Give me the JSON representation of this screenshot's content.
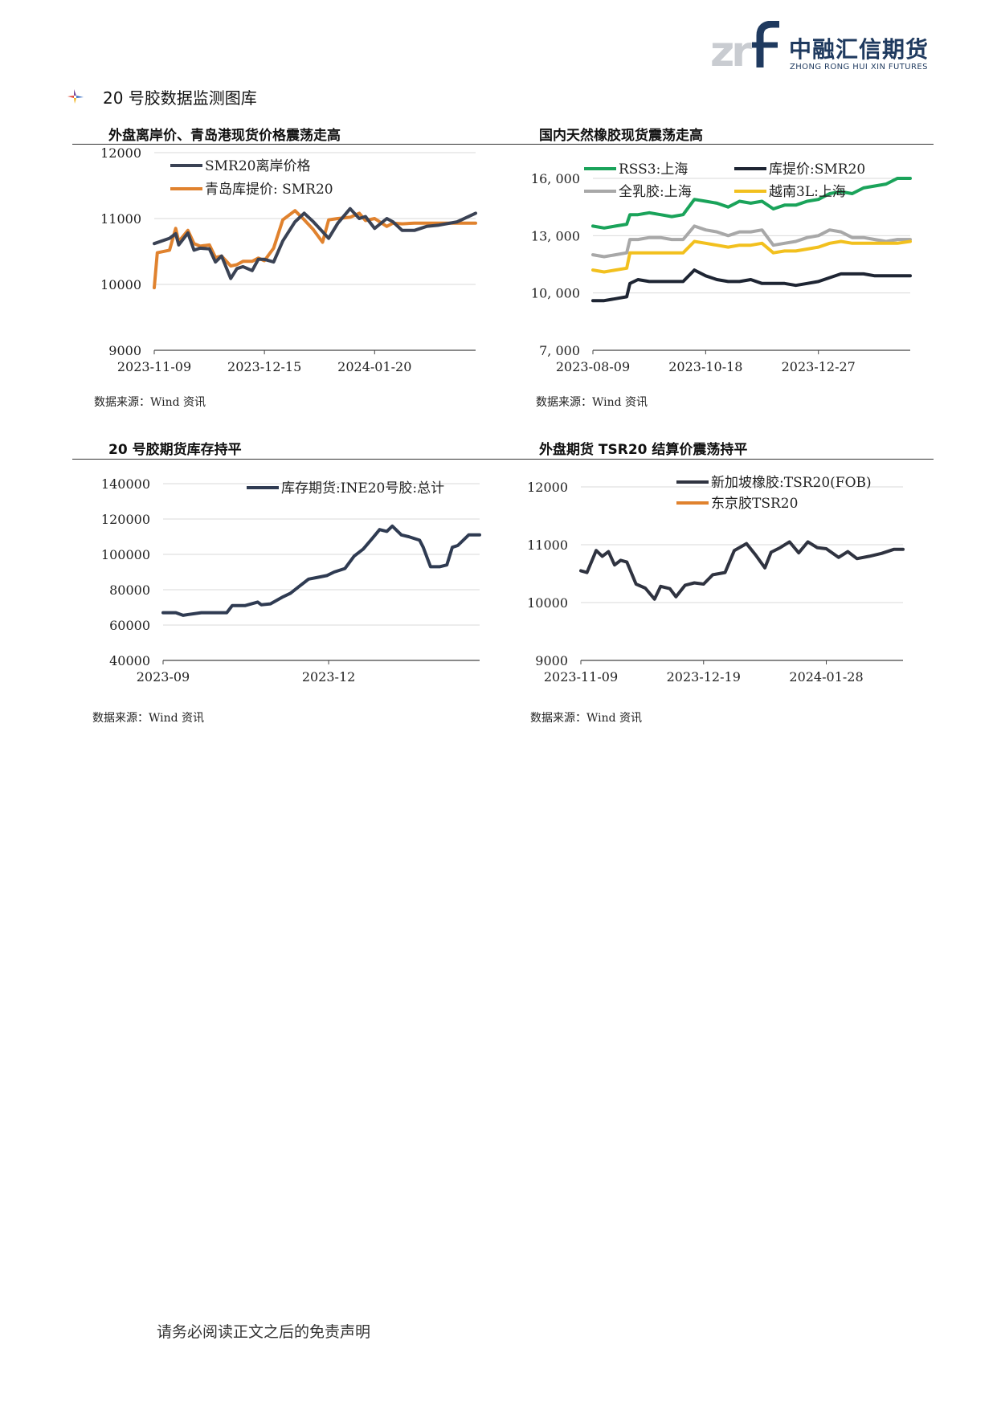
{
  "header": {
    "logo_mark": "zrf",
    "logo_cn": "中融汇信期货",
    "logo_en": "ZHONG RONG HUI XIN FUTURES"
  },
  "section_title": "20 号胶数据监测图库",
  "footer": "请务必阅读正文之后的免责声明",
  "panels": [
    {
      "title": "外盘离岸价、青岛港现货价格震荡走高",
      "source": "数据来源：Wind 资讯"
    },
    {
      "title": "国内天然橡胶现货震荡走高",
      "source": "数据来源：Wind 资讯"
    },
    {
      "title": "20 号胶期货库存持平",
      "source": "数据来源：Wind 资讯"
    },
    {
      "title": "外盘期货 TSR20 结算价震荡持平",
      "source": "数据来源：Wind 资讯"
    }
  ],
  "chart_data": [
    {
      "type": "line",
      "title": "外盘离岸价、青岛港现货价格震荡走高",
      "ylim": [
        9000,
        12000
      ],
      "yticks": [
        9000,
        10000,
        11000,
        12000
      ],
      "xlim": [
        "2023-11-09",
        "2024-02-22"
      ],
      "xticks": [
        "2023-11-09",
        "2023-12-15",
        "2024-01-20"
      ],
      "legend": "top-left",
      "series": [
        {
          "name": "SMR20离岸价格",
          "color": "#3a4254",
          "x": [
            "2023-11-09",
            "2023-11-14",
            "2023-11-16",
            "2023-11-17",
            "2023-11-20",
            "2023-11-22",
            "2023-11-24",
            "2023-11-27",
            "2023-11-29",
            "2023-12-01",
            "2023-12-04",
            "2023-12-06",
            "2023-12-08",
            "2023-12-11",
            "2023-12-13",
            "2023-12-15",
            "2023-12-18",
            "2023-12-21",
            "2023-12-25",
            "2023-12-28",
            "2023-12-31",
            "2024-01-03",
            "2024-01-05",
            "2024-01-08",
            "2024-01-12",
            "2024-01-15",
            "2024-01-17",
            "2024-01-20",
            "2024-01-24",
            "2024-01-26",
            "2024-01-29",
            "2024-02-02",
            "2024-02-06",
            "2024-02-10",
            "2024-02-16",
            "2024-02-22"
          ],
          "values": [
            10620,
            10700,
            10770,
            10600,
            10780,
            10520,
            10550,
            10540,
            10340,
            10430,
            10090,
            10240,
            10270,
            10210,
            10380,
            10380,
            10340,
            10660,
            10950,
            11080,
            10950,
            10800,
            10700,
            10930,
            11150,
            11000,
            11030,
            10850,
            11000,
            10950,
            10820,
            10820,
            10880,
            10900,
            10950,
            11080
          ]
        },
        {
          "name": "青岛库提价: SMR20",
          "color": "#e0822e",
          "x": [
            "2023-11-09",
            "2023-11-10",
            "2023-11-14",
            "2023-11-16",
            "2023-11-17",
            "2023-11-20",
            "2023-11-22",
            "2023-11-24",
            "2023-11-27",
            "2023-11-29",
            "2023-12-01",
            "2023-12-04",
            "2023-12-06",
            "2023-12-08",
            "2023-12-11",
            "2023-12-13",
            "2023-12-15",
            "2023-12-18",
            "2023-12-21",
            "2023-12-25",
            "2023-12-28",
            "2023-12-31",
            "2024-01-03",
            "2024-01-05",
            "2024-01-08",
            "2024-01-12",
            "2024-01-15",
            "2024-01-17",
            "2024-01-20",
            "2024-01-24",
            "2024-01-26",
            "2024-01-29",
            "2024-02-02",
            "2024-02-06",
            "2024-02-10",
            "2024-02-16",
            "2024-02-22"
          ],
          "values": [
            9950,
            10480,
            10520,
            10850,
            10650,
            10820,
            10620,
            10580,
            10600,
            10410,
            10430,
            10280,
            10300,
            10350,
            10350,
            10400,
            10360,
            10550,
            10980,
            11120,
            10980,
            10830,
            10640,
            10980,
            11000,
            11020,
            11080,
            10970,
            11000,
            10880,
            10930,
            10920,
            10930,
            10930,
            10930,
            10930,
            10930
          ]
        }
      ]
    },
    {
      "type": "line",
      "title": "国内天然橡胶现货震荡走高",
      "ylim": [
        7000,
        16000
      ],
      "yticks": [
        7000,
        10000,
        13000,
        16000
      ],
      "ytick_labels": [
        "7, 000",
        "10, 000",
        "13, 000",
        "16, 000"
      ],
      "xlim": [
        "2023-08-09",
        "2024-02-22"
      ],
      "xticks": [
        "2023-08-09",
        "2023-10-18",
        "2023-12-27"
      ],
      "legend": "top",
      "series": [
        {
          "name": "RSS3:上海",
          "color": "#1aa35a",
          "x": [
            "2023-08-09",
            "2023-08-16",
            "2023-08-23",
            "2023-08-30",
            "2023-09-01",
            "2023-09-06",
            "2023-09-13",
            "2023-09-20",
            "2023-09-27",
            "2023-10-04",
            "2023-10-11",
            "2023-10-18",
            "2023-10-25",
            "2023-11-01",
            "2023-11-08",
            "2023-11-15",
            "2023-11-22",
            "2023-11-29",
            "2023-12-06",
            "2023-12-13",
            "2023-12-20",
            "2023-12-27",
            "2024-01-03",
            "2024-01-10",
            "2024-01-17",
            "2024-01-24",
            "2024-01-31",
            "2024-02-07",
            "2024-02-14",
            "2024-02-22"
          ],
          "values": [
            13500,
            13400,
            13500,
            13600,
            14100,
            14100,
            14200,
            14100,
            14000,
            14100,
            14900,
            14800,
            14700,
            14500,
            14800,
            14700,
            14800,
            14400,
            14600,
            14600,
            14800,
            14900,
            15200,
            15300,
            15200,
            15500,
            15600,
            15700,
            16000,
            16000
          ]
        },
        {
          "name": "库提价:SMR20",
          "color": "#1e2533",
          "x": [
            "2023-08-09",
            "2023-08-16",
            "2023-08-23",
            "2023-08-30",
            "2023-09-01",
            "2023-09-06",
            "2023-09-13",
            "2023-09-20",
            "2023-09-27",
            "2023-10-04",
            "2023-10-11",
            "2023-10-18",
            "2023-10-25",
            "2023-11-01",
            "2023-11-08",
            "2023-11-15",
            "2023-11-22",
            "2023-11-29",
            "2023-12-06",
            "2023-12-13",
            "2023-12-20",
            "2023-12-27",
            "2024-01-03",
            "2024-01-10",
            "2024-01-17",
            "2024-01-24",
            "2024-01-31",
            "2024-02-07",
            "2024-02-14",
            "2024-02-22"
          ],
          "values": [
            9600,
            9600,
            9700,
            9800,
            10500,
            10700,
            10600,
            10600,
            10600,
            10600,
            11200,
            10900,
            10700,
            10600,
            10600,
            10700,
            10500,
            10500,
            10500,
            10400,
            10500,
            10600,
            10800,
            11000,
            11000,
            11000,
            10900,
            10900,
            10900,
            10900
          ]
        },
        {
          "name": "全乳胶:上海",
          "color": "#a8a8a8",
          "x": [
            "2023-08-09",
            "2023-08-16",
            "2023-08-23",
            "2023-08-30",
            "2023-09-01",
            "2023-09-06",
            "2023-09-13",
            "2023-09-20",
            "2023-09-27",
            "2023-10-04",
            "2023-10-11",
            "2023-10-18",
            "2023-10-25",
            "2023-11-01",
            "2023-11-08",
            "2023-11-15",
            "2023-11-22",
            "2023-11-29",
            "2023-12-06",
            "2023-12-13",
            "2023-12-20",
            "2023-12-27",
            "2024-01-03",
            "2024-01-10",
            "2024-01-17",
            "2024-01-24",
            "2024-01-31",
            "2024-02-07",
            "2024-02-14",
            "2024-02-22"
          ],
          "values": [
            12000,
            11900,
            12000,
            12100,
            12800,
            12800,
            12900,
            12900,
            12800,
            12800,
            13500,
            13300,
            13200,
            13000,
            13200,
            13200,
            13300,
            12500,
            12600,
            12700,
            12900,
            13000,
            13300,
            13200,
            12900,
            12900,
            12800,
            12700,
            12800,
            12800
          ]
        },
        {
          "name": "越南3L:上海",
          "color": "#f2c01e",
          "x": [
            "2023-08-09",
            "2023-08-16",
            "2023-08-23",
            "2023-08-30",
            "2023-09-01",
            "2023-09-06",
            "2023-09-13",
            "2023-09-20",
            "2023-09-27",
            "2023-10-04",
            "2023-10-11",
            "2023-10-18",
            "2023-10-25",
            "2023-11-01",
            "2023-11-08",
            "2023-11-15",
            "2023-11-22",
            "2023-11-29",
            "2023-12-06",
            "2023-12-13",
            "2023-12-20",
            "2023-12-27",
            "2024-01-03",
            "2024-01-10",
            "2024-01-17",
            "2024-01-24",
            "2024-01-31",
            "2024-02-07",
            "2024-02-14",
            "2024-02-22"
          ],
          "values": [
            11200,
            11100,
            11200,
            11300,
            12100,
            12100,
            12100,
            12100,
            12100,
            12100,
            12700,
            12600,
            12500,
            12400,
            12500,
            12500,
            12600,
            12100,
            12200,
            12200,
            12300,
            12400,
            12600,
            12700,
            12600,
            12600,
            12600,
            12600,
            12600,
            12700
          ]
        }
      ]
    },
    {
      "type": "line",
      "title": "20 号胶期货库存持平",
      "ylim": [
        40000,
        140000
      ],
      "yticks": [
        40000,
        60000,
        80000,
        100000,
        120000,
        140000
      ],
      "xlim": [
        "2023-09-01",
        "2024-02-22"
      ],
      "xticks": [
        "2023-09",
        "2023-12"
      ],
      "xtick_dates": [
        "2023-09-01",
        "2023-12-01"
      ],
      "legend": "top-right",
      "series": [
        {
          "name": "库存期货:INE20号胶:总计",
          "color": "#2f3b52",
          "x": [
            "2023-09-01",
            "2023-09-08",
            "2023-09-12",
            "2023-09-15",
            "2023-09-22",
            "2023-09-29",
            "2023-10-06",
            "2023-10-09",
            "2023-10-16",
            "2023-10-23",
            "2023-10-25",
            "2023-10-30",
            "2023-11-06",
            "2023-11-10",
            "2023-11-15",
            "2023-11-20",
            "2023-11-25",
            "2023-11-30",
            "2023-12-04",
            "2023-12-10",
            "2023-12-15",
            "2023-12-20",
            "2023-12-25",
            "2023-12-29",
            "2024-01-02",
            "2024-01-05",
            "2024-01-10",
            "2024-01-14",
            "2024-01-20",
            "2024-01-22",
            "2024-01-26",
            "2024-01-31",
            "2024-02-04",
            "2024-02-07",
            "2024-02-10",
            "2024-02-16",
            "2024-02-22"
          ],
          "values": [
            67000,
            67000,
            65500,
            66000,
            67000,
            67000,
            67000,
            71000,
            71000,
            73000,
            71500,
            72000,
            76000,
            78000,
            82000,
            86000,
            87000,
            88000,
            90000,
            92000,
            99000,
            103000,
            109000,
            114000,
            113000,
            116000,
            111000,
            110000,
            108000,
            104000,
            93000,
            93000,
            94000,
            104000,
            105000,
            111000,
            111000
          ]
        }
      ]
    },
    {
      "type": "line",
      "title": "外盘期货 TSR20 结算价震荡持平",
      "ylim": [
        9000,
        12000
      ],
      "yticks": [
        9000,
        10000,
        11000,
        12000
      ],
      "xlim": [
        "2023-11-09",
        "2024-02-22"
      ],
      "xticks": [
        "2023-11-09",
        "2023-12-19",
        "2024-01-28"
      ],
      "legend": "top-right",
      "series": [
        {
          "name": "新加坡橡胶:TSR20(FOB)",
          "color": "#2f3340",
          "x": [
            "2023-11-09",
            "2023-11-11",
            "2023-11-14",
            "2023-11-16",
            "2023-11-18",
            "2023-11-20",
            "2023-11-22",
            "2023-11-24",
            "2023-11-27",
            "2023-11-30",
            "2023-12-03",
            "2023-12-05",
            "2023-12-08",
            "2023-12-10",
            "2023-12-13",
            "2023-12-16",
            "2023-12-19",
            "2023-12-22",
            "2023-12-26",
            "2023-12-29",
            "2024-01-02",
            "2024-01-05",
            "2024-01-08",
            "2024-01-10",
            "2024-01-13",
            "2024-01-16",
            "2024-01-19",
            "2024-01-22",
            "2024-01-25",
            "2024-01-28",
            "2024-02-01",
            "2024-02-04",
            "2024-02-07",
            "2024-02-11",
            "2024-02-15",
            "2024-02-19",
            "2024-02-22"
          ],
          "values": [
            10550,
            10520,
            10900,
            10800,
            10880,
            10650,
            10730,
            10700,
            10320,
            10250,
            10060,
            10280,
            10240,
            10100,
            10300,
            10340,
            10320,
            10480,
            10520,
            10900,
            11020,
            10820,
            10600,
            10870,
            10950,
            11050,
            10860,
            11050,
            10950,
            10930,
            10780,
            10880,
            10760,
            10800,
            10850,
            10920,
            10920
          ]
        },
        {
          "name": "东京胶TSR20",
          "color": "#e0822e",
          "x": [],
          "values": []
        }
      ]
    }
  ]
}
